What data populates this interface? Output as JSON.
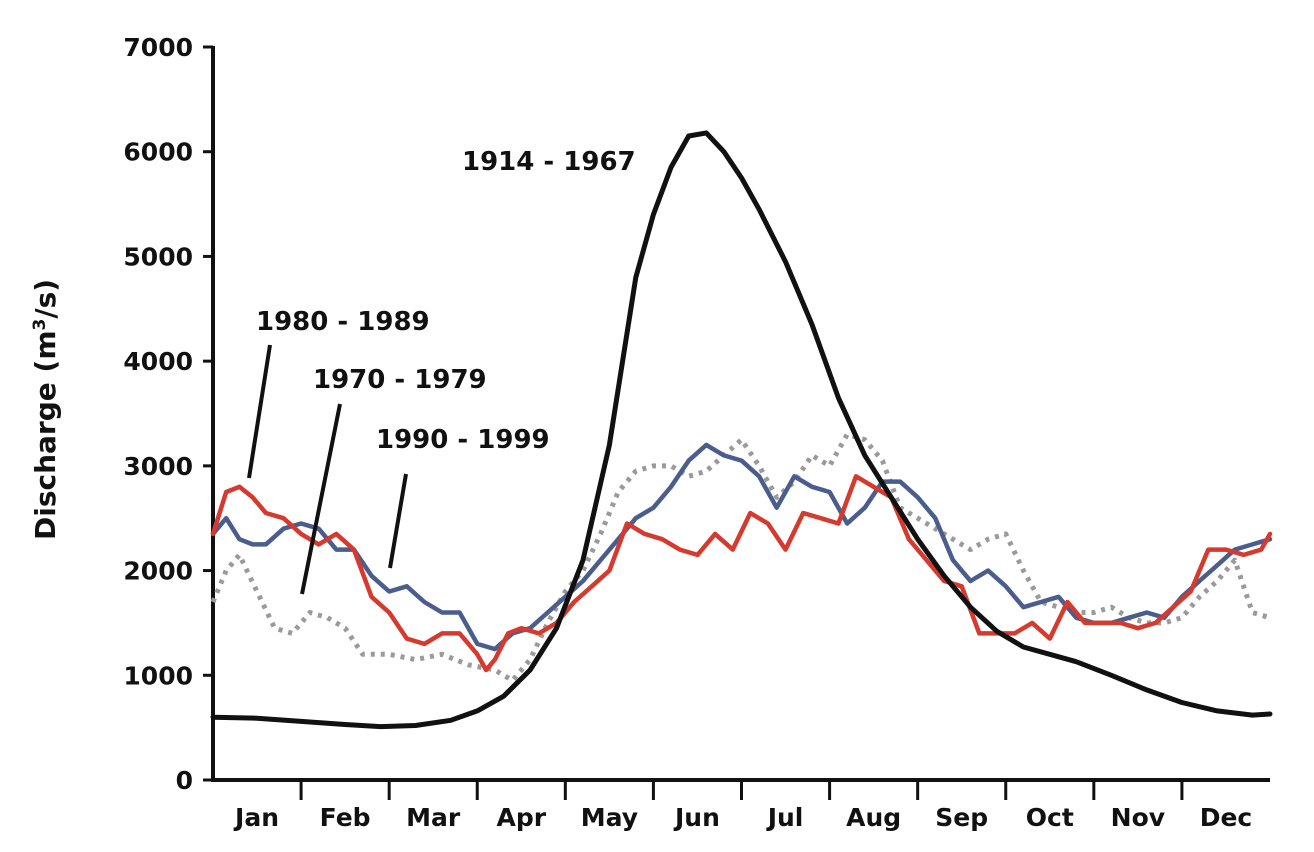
{
  "chart_data": {
    "type": "line",
    "title": "",
    "xlabel": "",
    "ylabel": "Discharge (m",
    "ylabel_sup": "3",
    "ylabel_end": "/s)",
    "ylim": [
      0,
      7000
    ],
    "yticks": [
      0,
      1000,
      2000,
      3000,
      4000,
      5000,
      6000,
      7000
    ],
    "ytick_labels": [
      "0",
      "1000",
      "2000",
      "3000",
      "4000",
      "5000",
      "6000",
      "7000"
    ],
    "categories": [
      "Jan",
      "Feb",
      "Mar",
      "Apr",
      "May",
      "Jun",
      "Jul",
      "Aug",
      "Sep",
      "Oct",
      "Nov",
      "Dec"
    ],
    "xlim": [
      0,
      12
    ],
    "grid": false,
    "legend": "none (series labeled by callouts)",
    "series": [
      {
        "name": "1914 - 1967",
        "color": "#111111",
        "style": "solid",
        "x": [
          0,
          0.5,
          1,
          1.5,
          1.9,
          2.3,
          2.7,
          3.0,
          3.3,
          3.6,
          3.9,
          4.2,
          4.5,
          4.8,
          5.0,
          5.2,
          5.4,
          5.6,
          5.8,
          6.0,
          6.2,
          6.5,
          6.8,
          7.1,
          7.4,
          7.7,
          8.0,
          8.3,
          8.6,
          8.9,
          9.2,
          9.5,
          9.8,
          10.2,
          10.6,
          11.0,
          11.4,
          11.8,
          12.0
        ],
        "y": [
          600,
          590,
          560,
          530,
          510,
          520,
          570,
          660,
          800,
          1050,
          1450,
          2100,
          3200,
          4800,
          5400,
          5850,
          6150,
          6180,
          6000,
          5750,
          5450,
          4950,
          4350,
          3650,
          3100,
          2700,
          2300,
          1950,
          1650,
          1420,
          1270,
          1200,
          1130,
          1000,
          860,
          740,
          660,
          620,
          630
        ]
      },
      {
        "name": "1980 - 1989",
        "color": "#d63a2e",
        "style": "solid",
        "x": [
          0,
          0.15,
          0.3,
          0.45,
          0.6,
          0.8,
          1.0,
          1.2,
          1.4,
          1.6,
          1.8,
          2.0,
          2.2,
          2.4,
          2.6,
          2.8,
          3.0,
          3.1,
          3.2,
          3.35,
          3.5,
          3.7,
          3.9,
          4.1,
          4.3,
          4.5,
          4.7,
          4.9,
          5.1,
          5.3,
          5.5,
          5.7,
          5.9,
          6.1,
          6.3,
          6.5,
          6.7,
          6.9,
          7.1,
          7.3,
          7.5,
          7.7,
          7.9,
          8.1,
          8.3,
          8.5,
          8.7,
          8.9,
          9.1,
          9.3,
          9.5,
          9.7,
          9.9,
          10.1,
          10.3,
          10.5,
          10.7,
          10.9,
          11.1,
          11.3,
          11.5,
          11.7,
          11.9,
          12.0
        ],
        "y": [
          2350,
          2750,
          2800,
          2700,
          2550,
          2500,
          2350,
          2250,
          2350,
          2200,
          1750,
          1600,
          1350,
          1300,
          1400,
          1400,
          1200,
          1050,
          1150,
          1400,
          1450,
          1400,
          1500,
          1700,
          1850,
          2000,
          2450,
          2350,
          2300,
          2200,
          2150,
          2350,
          2200,
          2550,
          2450,
          2200,
          2550,
          2500,
          2450,
          2900,
          2800,
          2700,
          2300,
          2100,
          1900,
          1850,
          1400,
          1400,
          1400,
          1500,
          1350,
          1700,
          1500,
          1500,
          1500,
          1450,
          1500,
          1650,
          1800,
          2200,
          2200,
          2150,
          2200,
          2350
        ]
      },
      {
        "name": "1970 - 1979",
        "color": "#4a5d8c",
        "style": "solid",
        "x": [
          0,
          0.15,
          0.3,
          0.45,
          0.6,
          0.8,
          1.0,
          1.2,
          1.4,
          1.6,
          1.8,
          2.0,
          2.2,
          2.4,
          2.6,
          2.8,
          3.0,
          3.2,
          3.4,
          3.6,
          3.8,
          4.0,
          4.2,
          4.4,
          4.6,
          4.8,
          5.0,
          5.2,
          5.4,
          5.6,
          5.8,
          6.0,
          6.2,
          6.4,
          6.6,
          6.8,
          7.0,
          7.2,
          7.4,
          7.6,
          7.8,
          8.0,
          8.2,
          8.4,
          8.6,
          8.8,
          9.0,
          9.2,
          9.4,
          9.6,
          9.8,
          10.0,
          10.2,
          10.4,
          10.6,
          10.8,
          11.0,
          11.2,
          11.4,
          11.6,
          11.8,
          12.0
        ],
        "y": [
          2350,
          2500,
          2300,
          2250,
          2250,
          2400,
          2450,
          2400,
          2200,
          2200,
          1950,
          1800,
          1850,
          1700,
          1600,
          1600,
          1300,
          1250,
          1400,
          1450,
          1600,
          1750,
          1900,
          2100,
          2300,
          2500,
          2600,
          2800,
          3050,
          3200,
          3100,
          3050,
          2900,
          2600,
          2900,
          2800,
          2750,
          2450,
          2600,
          2850,
          2850,
          2700,
          2500,
          2100,
          1900,
          2000,
          1850,
          1650,
          1700,
          1750,
          1550,
          1500,
          1500,
          1550,
          1600,
          1550,
          1750,
          1900,
          2050,
          2200,
          2250,
          2300
        ]
      },
      {
        "name": "1990 - 1999",
        "color": "#9a9a9a",
        "style": "dotted",
        "x": [
          0,
          0.15,
          0.3,
          0.5,
          0.7,
          0.9,
          1.1,
          1.3,
          1.5,
          1.7,
          2.0,
          2.3,
          2.6,
          2.9,
          3.2,
          3.4,
          3.6,
          3.8,
          4.0,
          4.2,
          4.4,
          4.6,
          4.8,
          5.0,
          5.2,
          5.4,
          5.6,
          5.8,
          6.0,
          6.2,
          6.4,
          6.6,
          6.8,
          7.0,
          7.2,
          7.4,
          7.6,
          7.8,
          8.0,
          8.2,
          8.4,
          8.6,
          8.8,
          9.0,
          9.2,
          9.4,
          9.6,
          9.8,
          10.0,
          10.2,
          10.4,
          10.6,
          10.8,
          11.0,
          11.2,
          11.4,
          11.6,
          11.8,
          12.0
        ],
        "y": [
          1700,
          2000,
          2150,
          1800,
          1450,
          1400,
          1600,
          1550,
          1450,
          1200,
          1200,
          1150,
          1200,
          1100,
          1050,
          950,
          1150,
          1500,
          1800,
          2000,
          2350,
          2750,
          2950,
          3000,
          3000,
          2900,
          2950,
          3100,
          3250,
          3000,
          2700,
          2850,
          3100,
          3000,
          3300,
          3250,
          3050,
          2600,
          2500,
          2400,
          2300,
          2200,
          2300,
          2350,
          2000,
          1700,
          1650,
          1600,
          1600,
          1650,
          1550,
          1500,
          1500,
          1550,
          1750,
          1900,
          2100,
          1600,
          1550
        ]
      }
    ]
  },
  "annotations": [
    {
      "text": "1914 - 1967",
      "series": "1914 - 1967"
    },
    {
      "text": "1980 - 1989",
      "series": "1980 - 1989"
    },
    {
      "text": "1970 - 1979",
      "series": "1970 - 1979"
    },
    {
      "text": "1990 - 1999",
      "series": "1990 - 1999"
    }
  ]
}
